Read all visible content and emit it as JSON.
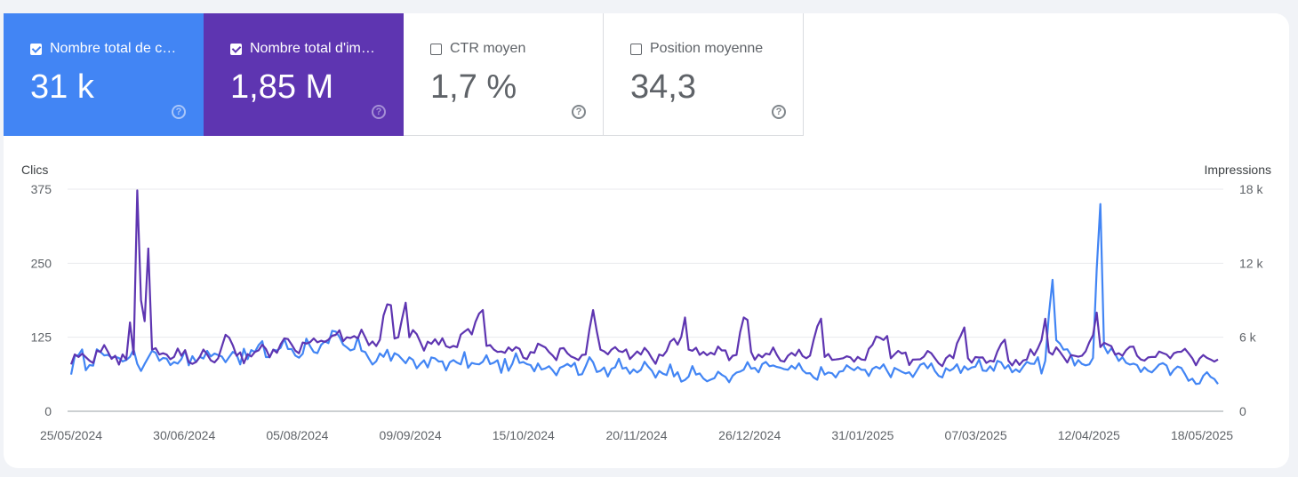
{
  "cards": [
    {
      "label": "Nombre total de c…",
      "value": "31 k",
      "checked": true
    },
    {
      "label": "Nombre total d'im…",
      "value": "1,85 M",
      "checked": true
    },
    {
      "label": "CTR moyen",
      "value": "1,7 %",
      "checked": false
    },
    {
      "label": "Position moyenne",
      "value": "34,3",
      "checked": false
    }
  ],
  "help_glyph": "?",
  "colors": {
    "clicks": "#4285f4",
    "impressions": "#5e35b1",
    "grid": "#e8eaed"
  },
  "chart_data": {
    "type": "line",
    "ylabel_left": "Clics",
    "ylabel_right": "Impressions",
    "y_left_ticks": [
      "375",
      "250",
      "125",
      "0"
    ],
    "y_right_ticks": [
      "18 k",
      "12 k",
      "6 k",
      "0"
    ],
    "ylim_left": [
      0,
      375
    ],
    "ylim_right": [
      0,
      18000
    ],
    "x_ticks": [
      "25/05/2024",
      "30/06/2024",
      "05/08/2024",
      "09/09/2024",
      "15/10/2024",
      "20/11/2024",
      "26/12/2024",
      "31/01/2025",
      "07/03/2025",
      "12/04/2025",
      "18/05/2025"
    ],
    "x_range": [
      "25/05/2024",
      "25/05/2025"
    ],
    "grid": true,
    "series": [
      {
        "name": "Clics",
        "axis": "left",
        "color": "#4285f4",
        "keypoints": [
          [
            0,
            62
          ],
          [
            2,
            95
          ],
          [
            5,
            78
          ],
          [
            8,
            100
          ],
          [
            12,
            92
          ],
          [
            16,
            92
          ],
          [
            20,
            80
          ],
          [
            22,
            102
          ],
          [
            25,
            90
          ],
          [
            30,
            88
          ],
          [
            35,
            92
          ],
          [
            40,
            95
          ],
          [
            45,
            96
          ],
          [
            50,
            100
          ],
          [
            55,
            104
          ],
          [
            60,
            105
          ],
          [
            65,
            110
          ],
          [
            70,
            115
          ],
          [
            75,
            108
          ],
          [
            80,
            100
          ],
          [
            85,
            92
          ],
          [
            90,
            88
          ],
          [
            95,
            80
          ],
          [
            100,
            84
          ],
          [
            105,
            82
          ],
          [
            110,
            80
          ],
          [
            115,
            82
          ],
          [
            120,
            80
          ],
          [
            125,
            78
          ],
          [
            130,
            76
          ],
          [
            135,
            80
          ],
          [
            140,
            76
          ],
          [
            145,
            74
          ],
          [
            150,
            72
          ],
          [
            155,
            70
          ],
          [
            160,
            68
          ],
          [
            165,
            66
          ],
          [
            170,
            62
          ],
          [
            175,
            56
          ],
          [
            180,
            60
          ],
          [
            185,
            72
          ],
          [
            190,
            76
          ],
          [
            195,
            70
          ],
          [
            200,
            64
          ],
          [
            205,
            62
          ],
          [
            210,
            68
          ],
          [
            215,
            70
          ],
          [
            220,
            72
          ],
          [
            225,
            70
          ],
          [
            230,
            68
          ],
          [
            235,
            68
          ],
          [
            240,
            72
          ],
          [
            245,
            74
          ],
          [
            250,
            76
          ],
          [
            255,
            78
          ],
          [
            262,
            80
          ],
          [
            265,
            85
          ],
          [
            267,
            222
          ],
          [
            268,
            120
          ],
          [
            272,
            95
          ],
          [
            275,
            80
          ],
          [
            278,
            90
          ],
          [
            280,
            350
          ],
          [
            281,
            110
          ],
          [
            285,
            85
          ],
          [
            290,
            78
          ],
          [
            295,
            72
          ],
          [
            300,
            70
          ],
          [
            305,
            55
          ],
          [
            308,
            60
          ],
          [
            310,
            58
          ],
          [
            312,
            46
          ]
        ]
      },
      {
        "name": "Impressions",
        "axis": "right",
        "color": "#5e35b1",
        "keypoints": [
          [
            0,
            3800
          ],
          [
            2,
            4400
          ],
          [
            5,
            4100
          ],
          [
            8,
            4800
          ],
          [
            12,
            4500
          ],
          [
            15,
            4200
          ],
          [
            16,
            7200
          ],
          [
            17,
            4600
          ],
          [
            18,
            17900
          ],
          [
            19,
            9000
          ],
          [
            20,
            7300
          ],
          [
            21,
            13200
          ],
          [
            22,
            5000
          ],
          [
            25,
            4700
          ],
          [
            30,
            4500
          ],
          [
            35,
            4400
          ],
          [
            40,
            4300
          ],
          [
            42,
            6200
          ],
          [
            45,
            4500
          ],
          [
            50,
            4800
          ],
          [
            55,
            5000
          ],
          [
            60,
            5400
          ],
          [
            65,
            5600
          ],
          [
            70,
            5800
          ],
          [
            75,
            6000
          ],
          [
            80,
            6000
          ],
          [
            84,
            5800
          ],
          [
            87,
            8600
          ],
          [
            88,
            5900
          ],
          [
            91,
            8800
          ],
          [
            92,
            6000
          ],
          [
            95,
            5600
          ],
          [
            100,
            5400
          ],
          [
            105,
            5200
          ],
          [
            112,
            8200
          ],
          [
            113,
            5300
          ],
          [
            115,
            5000
          ],
          [
            120,
            4900
          ],
          [
            125,
            4800
          ],
          [
            130,
            4800
          ],
          [
            135,
            4700
          ],
          [
            140,
            4600
          ],
          [
            142,
            8200
          ],
          [
            144,
            5000
          ],
          [
            150,
            4800
          ],
          [
            155,
            4600
          ],
          [
            160,
            4600
          ],
          [
            165,
            5400
          ],
          [
            167,
            7600
          ],
          [
            168,
            5000
          ],
          [
            175,
            4600
          ],
          [
            180,
            4500
          ],
          [
            184,
            7400
          ],
          [
            185,
            4800
          ],
          [
            190,
            4600
          ],
          [
            195,
            4500
          ],
          [
            200,
            4300
          ],
          [
            204,
            7500
          ],
          [
            205,
            4400
          ],
          [
            210,
            4300
          ],
          [
            215,
            4200
          ],
          [
            222,
            6100
          ],
          [
            223,
            4300
          ],
          [
            230,
            4200
          ],
          [
            235,
            4300
          ],
          [
            240,
            4300
          ],
          [
            243,
            6800
          ],
          [
            244,
            4300
          ],
          [
            250,
            4100
          ],
          [
            254,
            5800
          ],
          [
            255,
            4100
          ],
          [
            260,
            4200
          ],
          [
            263,
            5100
          ],
          [
            265,
            7500
          ],
          [
            266,
            4800
          ],
          [
            270,
            4400
          ],
          [
            275,
            4500
          ],
          [
            277,
            5600
          ],
          [
            279,
            8000
          ],
          [
            280,
            5200
          ],
          [
            285,
            4700
          ],
          [
            290,
            4500
          ],
          [
            295,
            4400
          ],
          [
            300,
            4700
          ],
          [
            305,
            4300
          ],
          [
            310,
            4200
          ],
          [
            312,
            4200
          ]
        ]
      }
    ]
  }
}
